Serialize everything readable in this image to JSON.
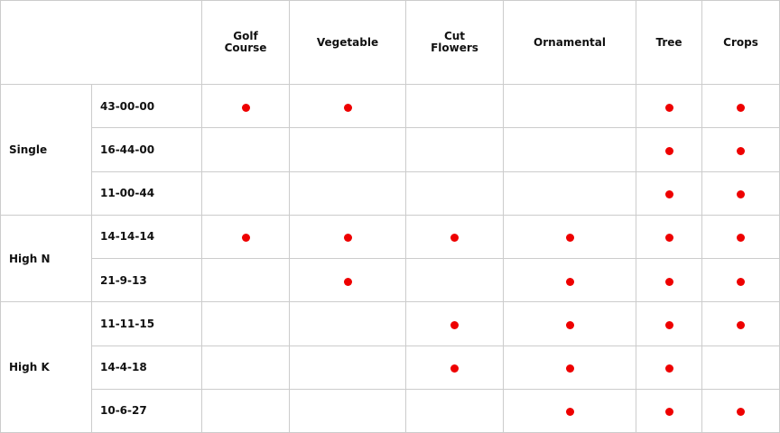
{
  "table": {
    "columns": [
      "Golf Course",
      "Vegetable",
      "Cut Flowers",
      "Ornamental",
      "Tree",
      "Crops"
    ],
    "groups": [
      {
        "label": "Single",
        "rows": [
          {
            "formula": "43-00-00",
            "marks": [
              true,
              true,
              false,
              false,
              true,
              true
            ]
          },
          {
            "formula": "16-44-00",
            "marks": [
              false,
              false,
              false,
              false,
              true,
              true
            ]
          },
          {
            "formula": "11-00-44",
            "marks": [
              false,
              false,
              false,
              false,
              true,
              true
            ]
          }
        ]
      },
      {
        "label": "High N",
        "rows": [
          {
            "formula": "14-14-14",
            "marks": [
              true,
              true,
              true,
              true,
              true,
              true
            ]
          },
          {
            "formula": "21-9-13",
            "marks": [
              false,
              true,
              false,
              true,
              true,
              true
            ]
          }
        ]
      },
      {
        "label": "High K",
        "rows": [
          {
            "formula": "11-11-15",
            "marks": [
              false,
              false,
              true,
              true,
              true,
              true
            ]
          },
          {
            "formula": "14-4-18",
            "marks": [
              false,
              false,
              true,
              true,
              true,
              false
            ]
          },
          {
            "formula": "10-6-27",
            "marks": [
              false,
              false,
              false,
              true,
              true,
              true
            ]
          }
        ]
      }
    ]
  }
}
